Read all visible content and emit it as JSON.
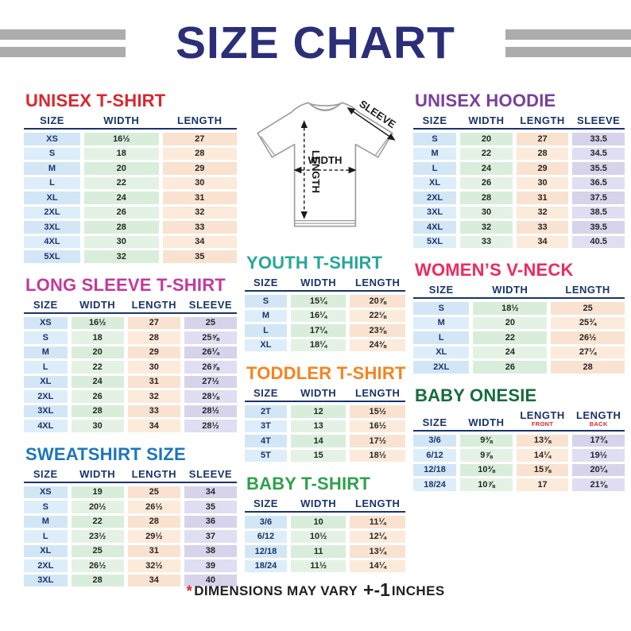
{
  "header": {
    "title": "SIZE CHART"
  },
  "diagram": {
    "labels": {
      "width": "WIDTH",
      "length": "LENGTH",
      "sleeve": "SLEEVE"
    }
  },
  "tables": {
    "unisex_tshirt": {
      "title": "UNISEX T-SHIRT",
      "accent": "#d9272e",
      "columns": [
        {
          "label": "SIZE"
        },
        {
          "label": "WIDTH"
        },
        {
          "label": "LENGTH"
        }
      ],
      "col_types": [
        "size",
        "width",
        "length"
      ],
      "rows": [
        [
          "XS",
          "16½",
          "27"
        ],
        [
          "S",
          "18",
          "28"
        ],
        [
          "M",
          "20",
          "29"
        ],
        [
          "L",
          "22",
          "30"
        ],
        [
          "XL",
          "24",
          "31"
        ],
        [
          "2XL",
          "26",
          "32"
        ],
        [
          "3XL",
          "28",
          "33"
        ],
        [
          "4XL",
          "30",
          "34"
        ],
        [
          "5XL",
          "32",
          "35"
        ]
      ]
    },
    "long_sleeve": {
      "title": "LONG SLEEVE T-SHIRT",
      "accent": "#c23a9b",
      "columns": [
        {
          "label": "SIZE"
        },
        {
          "label": "WIDTH"
        },
        {
          "label": "LENGTH"
        },
        {
          "label": "SLEEVE"
        }
      ],
      "col_types": [
        "size",
        "width",
        "length",
        "sleeve"
      ],
      "rows": [
        [
          "XS",
          "16½",
          "27",
          "25"
        ],
        [
          "S",
          "18",
          "28",
          "25⅝"
        ],
        [
          "M",
          "20",
          "29",
          "26¼"
        ],
        [
          "L",
          "22",
          "30",
          "26⅞"
        ],
        [
          "XL",
          "24",
          "31",
          "27½"
        ],
        [
          "2XL",
          "26",
          "32",
          "28⅛"
        ],
        [
          "3XL",
          "28",
          "33",
          "28½"
        ],
        [
          "4XL",
          "30",
          "34",
          "28½"
        ]
      ]
    },
    "sweatshirt": {
      "title": "SWEATSHIRT SIZE",
      "accent": "#1c76bc",
      "columns": [
        {
          "label": "SIZE"
        },
        {
          "label": "WIDTH"
        },
        {
          "label": "LENGTH"
        },
        {
          "label": "SLEEVE"
        }
      ],
      "col_types": [
        "size",
        "width",
        "length",
        "sleeve"
      ],
      "rows": [
        [
          "XS",
          "19",
          "25",
          "34"
        ],
        [
          "S",
          "20½",
          "26½",
          "35"
        ],
        [
          "M",
          "22",
          "28",
          "36"
        ],
        [
          "L",
          "23½",
          "29½",
          "37"
        ],
        [
          "XL",
          "25",
          "31",
          "38"
        ],
        [
          "2XL",
          "26½",
          "32½",
          "39"
        ],
        [
          "3XL",
          "28",
          "34",
          "40"
        ]
      ]
    },
    "youth_tshirt": {
      "title": "YOUTH T-SHIRT",
      "accent": "#26a79b",
      "columns": [
        {
          "label": "SIZE"
        },
        {
          "label": "WIDTH"
        },
        {
          "label": "LENGTH"
        }
      ],
      "col_types": [
        "size",
        "width",
        "length"
      ],
      "rows": [
        [
          "S",
          "15¼",
          "20⅞"
        ],
        [
          "M",
          "16¼",
          "22⅛"
        ],
        [
          "L",
          "17¼",
          "23⅜"
        ],
        [
          "XL",
          "18¼",
          "24⅜"
        ]
      ]
    },
    "toddler_tshirt": {
      "title": "TODDLER T-SHIRT",
      "accent": "#f5831f",
      "columns": [
        {
          "label": "SIZE"
        },
        {
          "label": "WIDTH"
        },
        {
          "label": "LENGTH"
        }
      ],
      "col_types": [
        "size",
        "width",
        "length"
      ],
      "rows": [
        [
          "2T",
          "12",
          "15½"
        ],
        [
          "3T",
          "13",
          "16½"
        ],
        [
          "4T",
          "14",
          "17½"
        ],
        [
          "5T",
          "15",
          "18½"
        ]
      ]
    },
    "baby_tshirt": {
      "title": "BABY T-SHIRT",
      "accent": "#2fa14c",
      "columns": [
        {
          "label": "SIZE"
        },
        {
          "label": "WIDTH"
        },
        {
          "label": "LENGTH"
        }
      ],
      "col_types": [
        "size",
        "width",
        "length"
      ],
      "rows": [
        [
          "3/6",
          "10",
          "11¼"
        ],
        [
          "6/12",
          "10½",
          "12¼"
        ],
        [
          "12/18",
          "11",
          "13¼"
        ],
        [
          "18/24",
          "11½",
          "14¼"
        ]
      ]
    },
    "unisex_hoodie": {
      "title": "UNISEX HOODIE",
      "accent": "#7b3f9b",
      "columns": [
        {
          "label": "SIZE"
        },
        {
          "label": "WIDTH"
        },
        {
          "label": "LENGTH"
        },
        {
          "label": "SLEEVE"
        }
      ],
      "col_types": [
        "size",
        "width",
        "length",
        "sleeve"
      ],
      "rows": [
        [
          "S",
          "20",
          "27",
          "33.5"
        ],
        [
          "M",
          "22",
          "28",
          "34.5"
        ],
        [
          "L",
          "24",
          "29",
          "35.5"
        ],
        [
          "XL",
          "26",
          "30",
          "36.5"
        ],
        [
          "2XL",
          "28",
          "31",
          "37.5"
        ],
        [
          "3XL",
          "30",
          "32",
          "38.5"
        ],
        [
          "4XL",
          "32",
          "33",
          "39.5"
        ],
        [
          "5XL",
          "33",
          "34",
          "40.5"
        ]
      ]
    },
    "womens_vneck": {
      "title": "WOMEN’S V-NECK",
      "accent": "#ee2a5e",
      "columns": [
        {
          "label": "SIZE"
        },
        {
          "label": "WIDTH"
        },
        {
          "label": "LENGTH"
        }
      ],
      "col_types": [
        "size",
        "width",
        "length"
      ],
      "rows": [
        [
          "S",
          "18½",
          "25"
        ],
        [
          "M",
          "20",
          "25¾"
        ],
        [
          "L",
          "22",
          "26½"
        ],
        [
          "XL",
          "24",
          "27¼"
        ],
        [
          "2XL",
          "26",
          "28"
        ]
      ]
    },
    "baby_onesie": {
      "title": "BABY ONESIE",
      "accent": "#166c3e",
      "columns": [
        {
          "label": "SIZE"
        },
        {
          "label": "WIDTH"
        },
        {
          "label": "LENGTH",
          "sub": "FRONT"
        },
        {
          "label": "LENGTH",
          "sub": "BACK"
        }
      ],
      "col_types": [
        "size",
        "width",
        "length",
        "sleeve"
      ],
      "rows": [
        [
          "3/6",
          "9⅜",
          "13⅜",
          "17¾"
        ],
        [
          "6/12",
          "9⅞",
          "14¼",
          "19½"
        ],
        [
          "12/18",
          "10⅜",
          "15⅞",
          "20¼"
        ],
        [
          "18/24",
          "10⅞",
          "17",
          "21⅜"
        ]
      ]
    }
  },
  "footer": {
    "asterisk": "*",
    "text": "DIMENSIONS MAY VARY",
    "plus_minus": "+-1",
    "suffix": "INCHES"
  }
}
